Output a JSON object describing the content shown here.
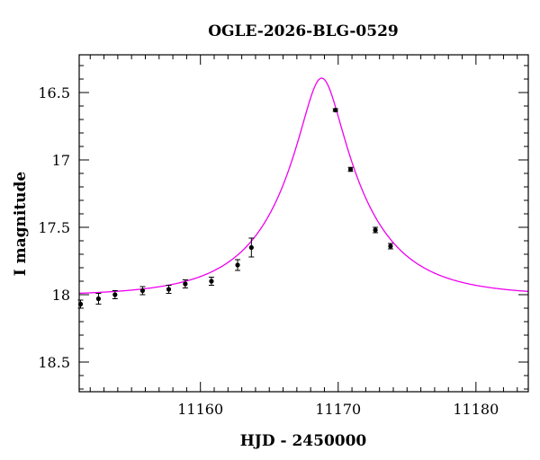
{
  "chart_data": {
    "type": "scatter",
    "title": "OGLE-2026-BLG-0529",
    "xlabel": "HJD - 2450000",
    "ylabel": "I magnitude",
    "xlim": [
      11151.2,
      11183.8
    ],
    "ylim": [
      18.72,
      16.22
    ],
    "y_inverted": true,
    "grid": false,
    "x_ticks": [
      11160,
      11170,
      11180
    ],
    "x_tick_labels": [
      "11160",
      "11170",
      "11180"
    ],
    "y_ticks": [
      16.5,
      17,
      17.5,
      18,
      18.5
    ],
    "y_tick_labels": [
      "16.5",
      "17",
      "17.5",
      "18",
      "18.5"
    ],
    "x_minor_step": 1,
    "y_minor_step": 0.1,
    "points": [
      {
        "x": 11151.3,
        "y": 18.07,
        "err": 0.03
      },
      {
        "x": 11152.6,
        "y": 18.03,
        "err": 0.04
      },
      {
        "x": 11153.8,
        "y": 18.0,
        "err": 0.03
      },
      {
        "x": 11155.8,
        "y": 17.97,
        "err": 0.03
      },
      {
        "x": 11157.7,
        "y": 17.96,
        "err": 0.03
      },
      {
        "x": 11158.9,
        "y": 17.92,
        "err": 0.03
      },
      {
        "x": 11160.8,
        "y": 17.9,
        "err": 0.03
      },
      {
        "x": 11162.7,
        "y": 17.78,
        "err": 0.04
      },
      {
        "x": 11163.7,
        "y": 17.65,
        "err": 0.07
      },
      {
        "x": 11169.8,
        "y": 16.63,
        "err": 0.01
      },
      {
        "x": 11170.9,
        "y": 17.07,
        "err": 0.015
      },
      {
        "x": 11172.7,
        "y": 17.52,
        "err": 0.02
      },
      {
        "x": 11173.8,
        "y": 17.64,
        "err": 0.02
      }
    ],
    "model": {
      "name": "",
      "color": "#ee00ee",
      "t0": 11168.8,
      "u0": 0.23,
      "tE": 6.1,
      "baseline": 18.01
    },
    "colors": {
      "points": "#000000",
      "axes": "#000000"
    }
  }
}
